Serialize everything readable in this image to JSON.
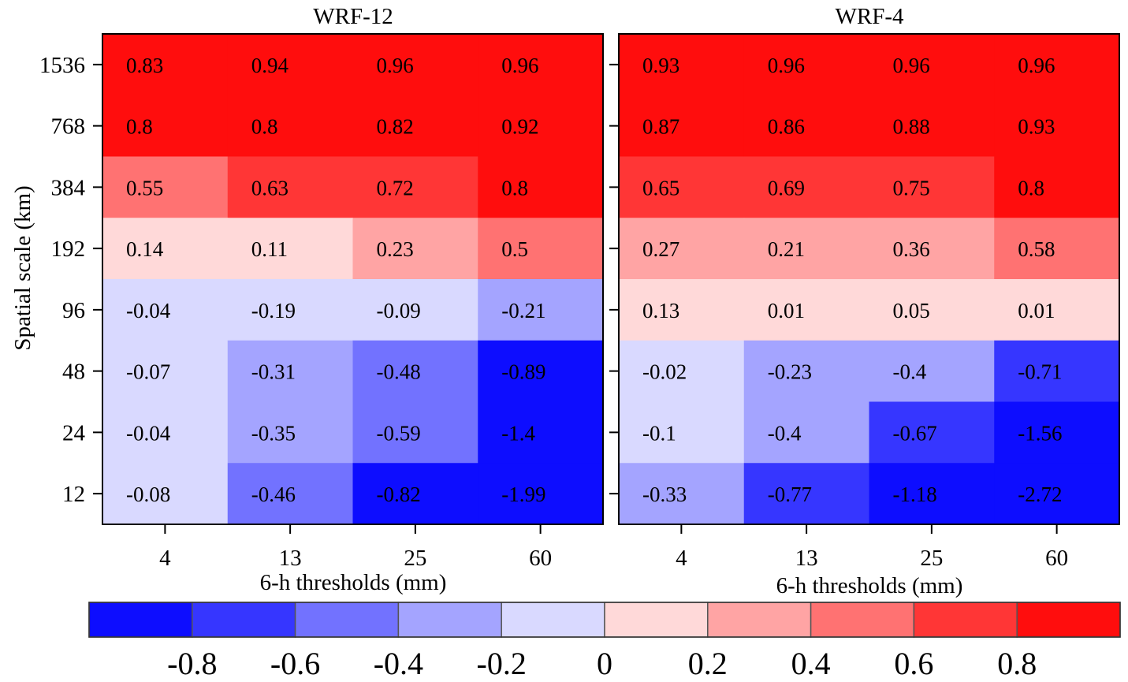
{
  "chart_data": {
    "type": "heatmap",
    "ylabel": "Spatial scale (km)",
    "y_categories": [
      "1536",
      "768",
      "384",
      "192",
      "96",
      "48",
      "24",
      "12"
    ],
    "panels": [
      {
        "title": "WRF-12",
        "xlabel": "6-h thresholds (mm)",
        "x_categories": [
          "4",
          "13",
          "25",
          "60"
        ],
        "values": [
          [
            0.83,
            0.94,
            0.96,
            0.96
          ],
          [
            0.8,
            0.8,
            0.82,
            0.92
          ],
          [
            0.55,
            0.63,
            0.72,
            0.8
          ],
          [
            0.14,
            0.11,
            0.23,
            0.5
          ],
          [
            -0.04,
            -0.19,
            -0.09,
            -0.21
          ],
          [
            -0.07,
            -0.31,
            -0.48,
            -0.89
          ],
          [
            -0.04,
            -0.35,
            -0.59,
            -1.4
          ],
          [
            -0.08,
            -0.46,
            -0.82,
            -1.99
          ]
        ]
      },
      {
        "title": "WRF-4",
        "xlabel": "6-h thresholds (mm)",
        "x_categories": [
          "4",
          "13",
          "25",
          "60"
        ],
        "values": [
          [
            0.93,
            0.96,
            0.96,
            0.96
          ],
          [
            0.87,
            0.86,
            0.88,
            0.93
          ],
          [
            0.65,
            0.69,
            0.75,
            0.8
          ],
          [
            0.27,
            0.21,
            0.36,
            0.58
          ],
          [
            0.13,
            0.01,
            0.05,
            0.01
          ],
          [
            -0.02,
            -0.23,
            -0.4,
            -0.71
          ],
          [
            -0.1,
            -0.4,
            -0.67,
            -1.56
          ],
          [
            -0.33,
            -0.77,
            -1.18,
            -2.72
          ]
        ]
      }
    ],
    "colorbar": {
      "ticks": [
        "-0.8",
        "-0.6",
        "-0.4",
        "-0.2",
        "0",
        "0.2",
        "0.4",
        "0.6",
        "0.8"
      ],
      "breaks": [
        -0.8,
        -0.6,
        -0.4,
        -0.2,
        0,
        0.2,
        0.4,
        0.6,
        0.8
      ],
      "colors": [
        "#0d0dff",
        "#3636ff",
        "#7272ff",
        "#a4a4ff",
        "#d9d9ff",
        "#ffd9d9",
        "#ffa4a4",
        "#ff7272",
        "#ff3636",
        "#ff0d0d"
      ]
    }
  }
}
